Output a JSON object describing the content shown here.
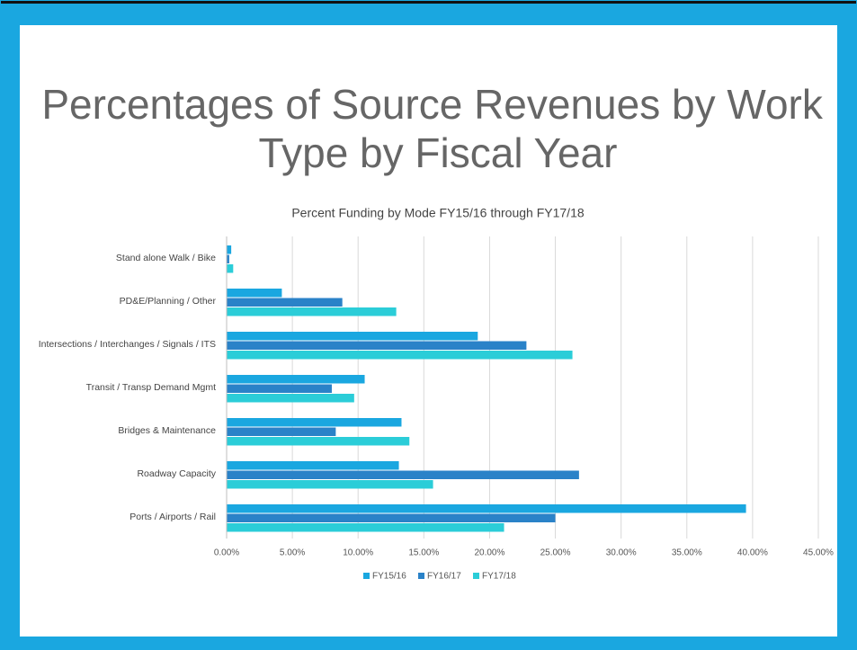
{
  "chart_data": {
    "type": "barh",
    "title": "Percentages of Source Revenues by Work Type by Fiscal Year",
    "subtitle": "Percent Funding by Mode FY15/16 through FY17/18",
    "categories": [
      "Stand alone Walk / Bike",
      "PD&E/Planning / Other",
      "Intersections / Interchanges / Signals / ITS",
      "Transit / Transp Demand Mgmt",
      "Bridges & Maintenance",
      "Roadway Capacity",
      "Ports / Airports / Rail"
    ],
    "series": [
      {
        "name": "FY15/16",
        "color": "#1aa7e0",
        "values": [
          0.35,
          4.2,
          19.1,
          10.5,
          13.3,
          13.1,
          39.5
        ]
      },
      {
        "name": "FY16/17",
        "color": "#2a82c8",
        "values": [
          0.2,
          8.8,
          22.8,
          8.0,
          8.3,
          26.8,
          25.0
        ]
      },
      {
        "name": "FY17/18",
        "color": "#2bcdd8",
        "values": [
          0.5,
          12.9,
          26.3,
          9.7,
          13.9,
          15.7,
          21.1
        ]
      }
    ],
    "xlim": [
      0,
      45
    ],
    "xticks": [
      {
        "value": 0,
        "label": "0.00%"
      },
      {
        "value": 5,
        "label": "5.00%"
      },
      {
        "value": 10,
        "label": "10.00%"
      },
      {
        "value": 15,
        "label": "15.00%"
      },
      {
        "value": 20,
        "label": "20.00%"
      },
      {
        "value": 25,
        "label": "25.00%"
      },
      {
        "value": 30,
        "label": "30.00%"
      },
      {
        "value": 35,
        "label": "35.00%"
      },
      {
        "value": 40,
        "label": "40.00%"
      },
      {
        "value": 45,
        "label": "45.00%"
      }
    ],
    "grid": true,
    "legend": "bottom"
  }
}
